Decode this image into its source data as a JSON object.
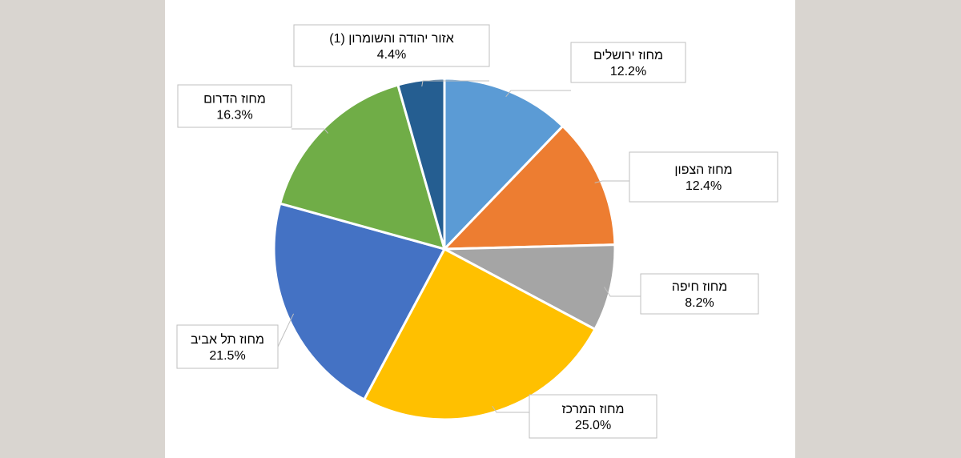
{
  "chart_data": {
    "type": "pie",
    "start_angle_deg": 0,
    "direction": "clockwise",
    "slices": [
      {
        "name": "מחוז ירושלים",
        "label": "12.2%",
        "value": 12.2,
        "color": "#5b9bd5"
      },
      {
        "name": "מחוז הצפון",
        "label": "12.4%",
        "value": 12.4,
        "color": "#ed7d31"
      },
      {
        "name": "מחוז חיפה",
        "label": "8.2%",
        "value": 8.2,
        "color": "#a5a5a5"
      },
      {
        "name": "מחוז המרכז",
        "label": "25.0%",
        "value": 25.0,
        "color": "#ffc000"
      },
      {
        "name": "מחוז תל אביב",
        "label": "21.5%",
        "value": 21.5,
        "color": "#4472c4"
      },
      {
        "name": "מחוז הדרום",
        "label": "16.3%",
        "value": 16.3,
        "color": "#70ad47"
      },
      {
        "name": "אזור יהודה והשומרון (1)",
        "label": "4.4%",
        "value": 4.4,
        "color": "#255e91"
      }
    ]
  }
}
